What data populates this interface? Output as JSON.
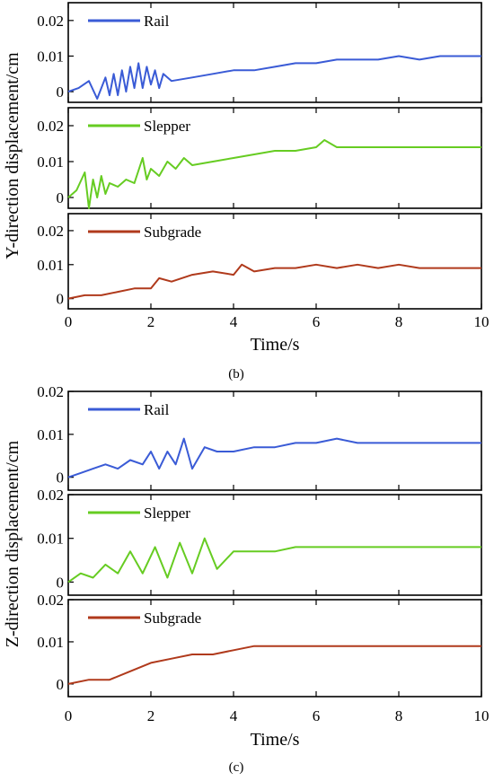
{
  "chart_data": [
    {
      "type": "line",
      "caption": "(b)",
      "xlabel": "Time/s",
      "ylabel": "Y-direction displacement/cm",
      "xlim": [
        0,
        10
      ],
      "x_ticks": [
        "0",
        "2",
        "4",
        "6",
        "8",
        "10"
      ],
      "grid": false,
      "legend_position": "top-left",
      "panels": [
        {
          "ylim": [
            -0.003,
            0.025
          ],
          "y_ticks": [
            "0",
            "0.01",
            "0.02"
          ],
          "series": [
            {
              "name": "Rail",
              "color": "#3a5bd6",
              "x": [
                0,
                0.25,
                0.5,
                0.7,
                0.9,
                1.0,
                1.1,
                1.2,
                1.3,
                1.4,
                1.5,
                1.6,
                1.7,
                1.8,
                1.9,
                2.0,
                2.1,
                2.2,
                2.3,
                2.5,
                3.0,
                3.5,
                4.0,
                4.5,
                5.0,
                5.5,
                6.0,
                6.5,
                7.0,
                7.5,
                8.0,
                8.5,
                9.0,
                9.5,
                10.0
              ],
              "y": [
                0,
                0.001,
                0.003,
                -0.002,
                0.004,
                -0.001,
                0.005,
                -0.001,
                0.006,
                0.0,
                0.007,
                0.001,
                0.008,
                0.001,
                0.007,
                0.002,
                0.006,
                0.001,
                0.005,
                0.003,
                0.004,
                0.005,
                0.006,
                0.006,
                0.007,
                0.008,
                0.008,
                0.009,
                0.009,
                0.009,
                0.01,
                0.009,
                0.01,
                0.01,
                0.01
              ]
            }
          ]
        },
        {
          "ylim": [
            -0.003,
            0.025
          ],
          "y_ticks": [
            "0",
            "0.01",
            "0.02"
          ],
          "series": [
            {
              "name": "Slepper",
              "color": "#66cc22",
              "x": [
                0,
                0.2,
                0.4,
                0.5,
                0.6,
                0.7,
                0.8,
                0.9,
                1.0,
                1.2,
                1.4,
                1.6,
                1.8,
                1.9,
                2.0,
                2.2,
                2.4,
                2.6,
                2.8,
                3.0,
                3.5,
                4.0,
                4.5,
                5.0,
                5.5,
                6.0,
                6.2,
                6.5,
                7.0,
                7.5,
                8.0,
                8.5,
                9.0,
                9.5,
                10.0
              ],
              "y": [
                0,
                0.002,
                0.007,
                -0.003,
                0.005,
                0.0,
                0.006,
                0.001,
                0.004,
                0.003,
                0.005,
                0.004,
                0.011,
                0.005,
                0.008,
                0.006,
                0.01,
                0.008,
                0.011,
                0.009,
                0.01,
                0.011,
                0.012,
                0.013,
                0.013,
                0.014,
                0.016,
                0.014,
                0.014,
                0.014,
                0.014,
                0.014,
                0.014,
                0.014,
                0.014
              ]
            }
          ]
        },
        {
          "ylim": [
            -0.003,
            0.025
          ],
          "y_ticks": [
            "0",
            "0.01",
            "0.02"
          ],
          "series": [
            {
              "name": "Subgrade",
              "color": "#b03a1c",
              "x": [
                0,
                0.4,
                0.8,
                1.2,
                1.6,
                2.0,
                2.2,
                2.5,
                3.0,
                3.5,
                4.0,
                4.2,
                4.5,
                5.0,
                5.5,
                6.0,
                6.5,
                7.0,
                7.5,
                8.0,
                8.5,
                9.0,
                9.5,
                10.0
              ],
              "y": [
                0,
                0.001,
                0.001,
                0.002,
                0.003,
                0.003,
                0.006,
                0.005,
                0.007,
                0.008,
                0.007,
                0.01,
                0.008,
                0.009,
                0.009,
                0.01,
                0.009,
                0.01,
                0.009,
                0.01,
                0.009,
                0.009,
                0.009,
                0.009
              ]
            }
          ]
        }
      ]
    },
    {
      "type": "line",
      "caption": "(c)",
      "xlabel": "Time/s",
      "ylabel": "Z-direction displacement/cm",
      "xlim": [
        0,
        10
      ],
      "x_ticks": [
        "0",
        "2",
        "4",
        "6",
        "8",
        "10"
      ],
      "grid": false,
      "legend_position": "top-left",
      "panels": [
        {
          "ylim": [
            -0.003,
            0.02
          ],
          "y_ticks": [
            "0",
            "0.01",
            "0.02"
          ],
          "series": [
            {
              "name": "Rail",
              "color": "#3a5bd6",
              "x": [
                0,
                0.3,
                0.6,
                0.9,
                1.2,
                1.5,
                1.8,
                2.0,
                2.2,
                2.4,
                2.6,
                2.8,
                3.0,
                3.3,
                3.6,
                4.0,
                4.5,
                5.0,
                5.5,
                6.0,
                6.5,
                7.0,
                7.5,
                8.0,
                8.5,
                9.0,
                9.5,
                10.0
              ],
              "y": [
                0,
                0.001,
                0.002,
                0.003,
                0.002,
                0.004,
                0.003,
                0.006,
                0.002,
                0.006,
                0.003,
                0.009,
                0.002,
                0.007,
                0.006,
                0.006,
                0.007,
                0.007,
                0.008,
                0.008,
                0.009,
                0.008,
                0.008,
                0.008,
                0.008,
                0.008,
                0.008,
                0.008
              ]
            }
          ]
        },
        {
          "ylim": [
            -0.003,
            0.02
          ],
          "y_ticks": [
            "0",
            "0.01",
            "0.02"
          ],
          "series": [
            {
              "name": "Slepper",
              "color": "#66cc22",
              "x": [
                0,
                0.3,
                0.6,
                0.9,
                1.2,
                1.5,
                1.8,
                2.1,
                2.4,
                2.7,
                3.0,
                3.3,
                3.6,
                4.0,
                4.5,
                5.0,
                5.5,
                6.0,
                6.5,
                7.0,
                7.5,
                8.0,
                8.5,
                9.0,
                9.5,
                10.0
              ],
              "y": [
                0,
                0.002,
                0.001,
                0.004,
                0.002,
                0.007,
                0.002,
                0.008,
                0.001,
                0.009,
                0.002,
                0.01,
                0.003,
                0.007,
                0.007,
                0.007,
                0.008,
                0.008,
                0.008,
                0.008,
                0.008,
                0.008,
                0.008,
                0.008,
                0.008,
                0.008
              ]
            }
          ]
        },
        {
          "ylim": [
            -0.003,
            0.02
          ],
          "y_ticks": [
            "0",
            "0.01",
            "0.02"
          ],
          "series": [
            {
              "name": "Subgrade",
              "color": "#b03a1c",
              "x": [
                0,
                0.5,
                1.0,
                1.5,
                2.0,
                2.5,
                3.0,
                3.5,
                4.0,
                4.5,
                5.0,
                5.5,
                6.0,
                6.5,
                7.0,
                7.5,
                8.0,
                8.5,
                9.0,
                9.5,
                10.0
              ],
              "y": [
                0,
                0.001,
                0.001,
                0.003,
                0.005,
                0.006,
                0.007,
                0.007,
                0.008,
                0.009,
                0.009,
                0.009,
                0.009,
                0.009,
                0.009,
                0.009,
                0.009,
                0.009,
                0.009,
                0.009,
                0.009
              ]
            }
          ]
        }
      ]
    }
  ]
}
